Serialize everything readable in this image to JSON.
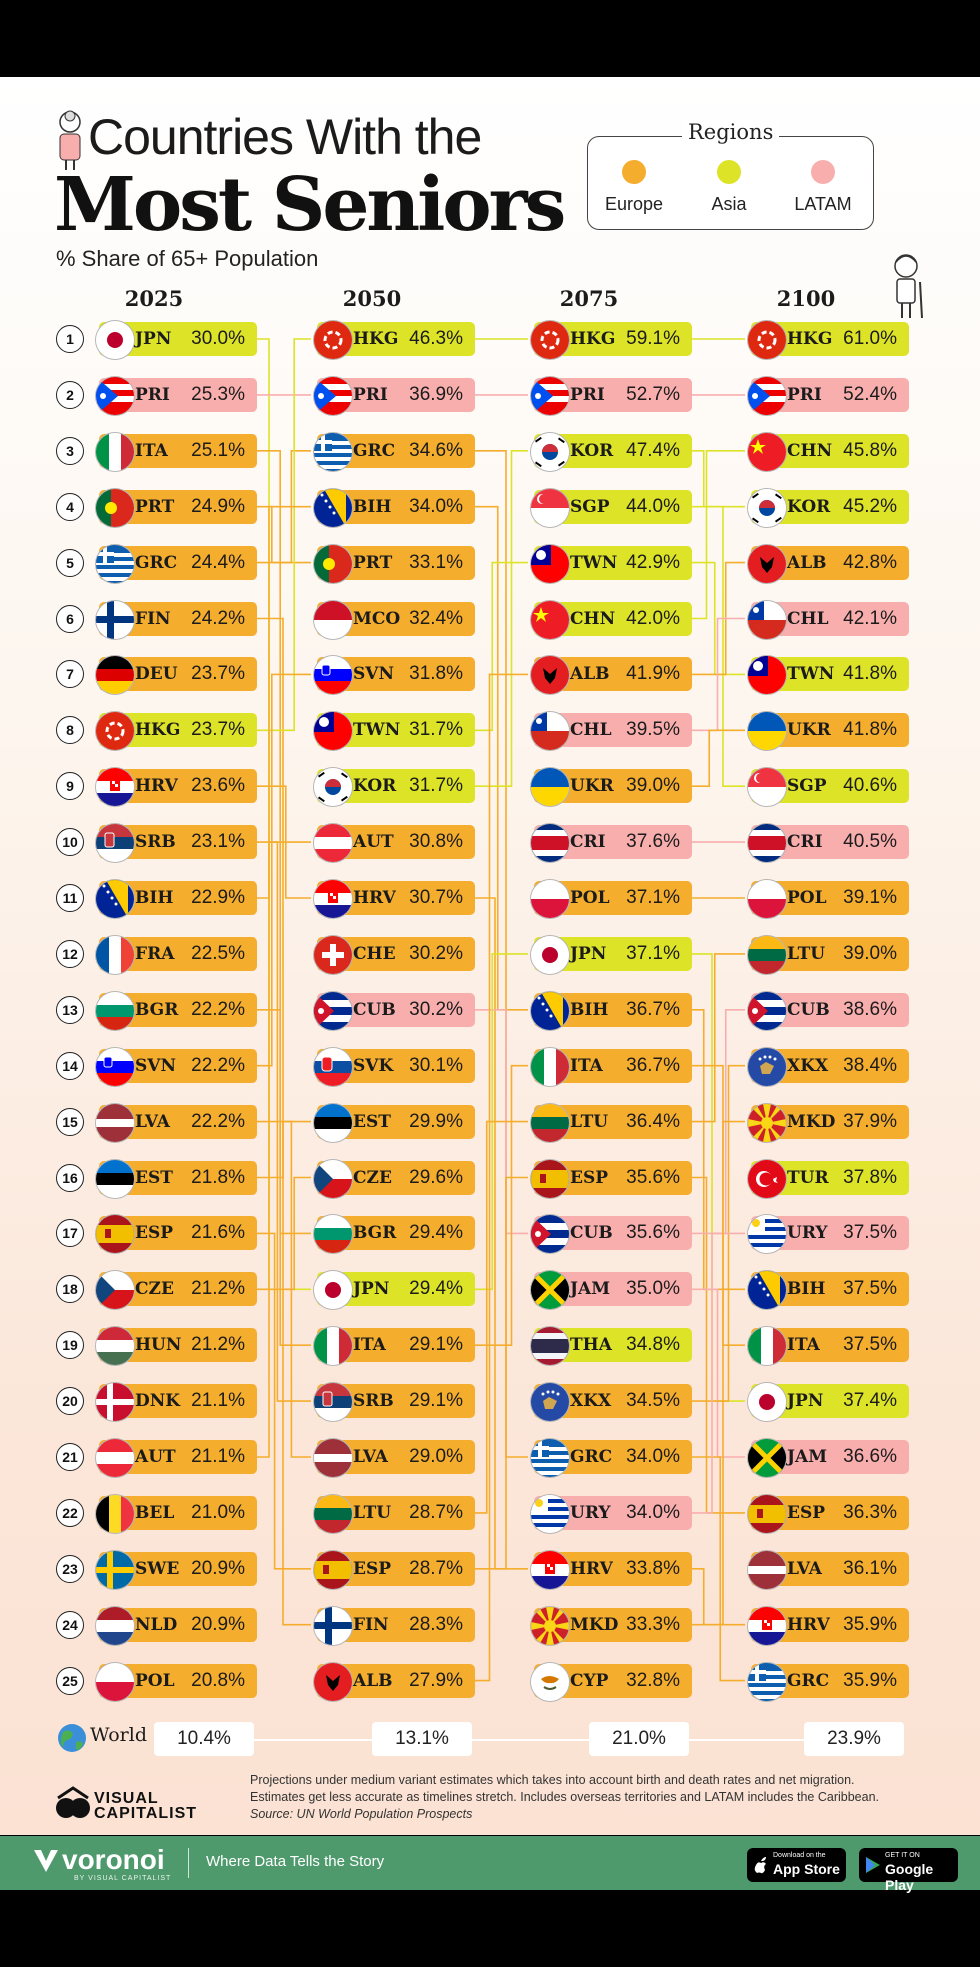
{
  "title": {
    "line1": "Countries With the",
    "line2": "Most Seniors"
  },
  "subtitle": "% Share of 65+ Population",
  "legend": {
    "title": "Regions",
    "items": [
      {
        "label": "Europe",
        "color": "#F5AD2D"
      },
      {
        "label": "Asia",
        "color": "#DDE327"
      },
      {
        "label": "LATAM",
        "color": "#F9AEAE"
      }
    ]
  },
  "chart_data": {
    "type": "table",
    "years": [
      "2025",
      "2050",
      "2075",
      "2100"
    ],
    "ranks": [
      "1",
      "2",
      "3",
      "4",
      "5",
      "6",
      "7",
      "8",
      "9",
      "10",
      "11",
      "12",
      "13",
      "14",
      "15",
      "16",
      "17",
      "18",
      "19",
      "20",
      "21",
      "22",
      "23",
      "24",
      "25"
    ],
    "columns": [
      [
        {
          "code": "JPN",
          "value": "30.0%",
          "region": "Asia"
        },
        {
          "code": "PRI",
          "value": "25.3%",
          "region": "LATAM"
        },
        {
          "code": "ITA",
          "value": "25.1%",
          "region": "Europe"
        },
        {
          "code": "PRT",
          "value": "24.9%",
          "region": "Europe"
        },
        {
          "code": "GRC",
          "value": "24.4%",
          "region": "Europe"
        },
        {
          "code": "FIN",
          "value": "24.2%",
          "region": "Europe"
        },
        {
          "code": "DEU",
          "value": "23.7%",
          "region": "Europe"
        },
        {
          "code": "HKG",
          "value": "23.7%",
          "region": "Asia"
        },
        {
          "code": "HRV",
          "value": "23.6%",
          "region": "Europe"
        },
        {
          "code": "SRB",
          "value": "23.1%",
          "region": "Europe"
        },
        {
          "code": "BIH",
          "value": "22.9%",
          "region": "Europe"
        },
        {
          "code": "FRA",
          "value": "22.5%",
          "region": "Europe"
        },
        {
          "code": "BGR",
          "value": "22.2%",
          "region": "Europe"
        },
        {
          "code": "SVN",
          "value": "22.2%",
          "region": "Europe"
        },
        {
          "code": "LVA",
          "value": "22.2%",
          "region": "Europe"
        },
        {
          "code": "EST",
          "value": "21.8%",
          "region": "Europe"
        },
        {
          "code": "ESP",
          "value": "21.6%",
          "region": "Europe"
        },
        {
          "code": "CZE",
          "value": "21.2%",
          "region": "Europe"
        },
        {
          "code": "HUN",
          "value": "21.2%",
          "region": "Europe"
        },
        {
          "code": "DNK",
          "value": "21.1%",
          "region": "Europe"
        },
        {
          "code": "AUT",
          "value": "21.1%",
          "region": "Europe"
        },
        {
          "code": "BEL",
          "value": "21.0%",
          "region": "Europe"
        },
        {
          "code": "SWE",
          "value": "20.9%",
          "region": "Europe"
        },
        {
          "code": "NLD",
          "value": "20.9%",
          "region": "Europe"
        },
        {
          "code": "POL",
          "value": "20.8%",
          "region": "Europe"
        }
      ],
      [
        {
          "code": "HKG",
          "value": "46.3%",
          "region": "Asia"
        },
        {
          "code": "PRI",
          "value": "36.9%",
          "region": "LATAM"
        },
        {
          "code": "GRC",
          "value": "34.6%",
          "region": "Europe"
        },
        {
          "code": "BIH",
          "value": "34.0%",
          "region": "Europe"
        },
        {
          "code": "PRT",
          "value": "33.1%",
          "region": "Europe"
        },
        {
          "code": "MCO",
          "value": "32.4%",
          "region": "Europe"
        },
        {
          "code": "SVN",
          "value": "31.8%",
          "region": "Europe"
        },
        {
          "code": "TWN",
          "value": "31.7%",
          "region": "Asia"
        },
        {
          "code": "KOR",
          "value": "31.7%",
          "region": "Asia"
        },
        {
          "code": "AUT",
          "value": "30.8%",
          "region": "Europe"
        },
        {
          "code": "HRV",
          "value": "30.7%",
          "region": "Europe"
        },
        {
          "code": "CHE",
          "value": "30.2%",
          "region": "Europe"
        },
        {
          "code": "CUB",
          "value": "30.2%",
          "region": "LATAM"
        },
        {
          "code": "SVK",
          "value": "30.1%",
          "region": "Europe"
        },
        {
          "code": "EST",
          "value": "29.9%",
          "region": "Europe"
        },
        {
          "code": "CZE",
          "value": "29.6%",
          "region": "Europe"
        },
        {
          "code": "BGR",
          "value": "29.4%",
          "region": "Europe"
        },
        {
          "code": "JPN",
          "value": "29.4%",
          "region": "Asia"
        },
        {
          "code": "ITA",
          "value": "29.1%",
          "region": "Europe"
        },
        {
          "code": "SRB",
          "value": "29.1%",
          "region": "Europe"
        },
        {
          "code": "LVA",
          "value": "29.0%",
          "region": "Europe"
        },
        {
          "code": "LTU",
          "value": "28.7%",
          "region": "Europe"
        },
        {
          "code": "ESP",
          "value": "28.7%",
          "region": "Europe"
        },
        {
          "code": "FIN",
          "value": "28.3%",
          "region": "Europe"
        },
        {
          "code": "ALB",
          "value": "27.9%",
          "region": "Europe"
        }
      ],
      [
        {
          "code": "HKG",
          "value": "59.1%",
          "region": "Asia"
        },
        {
          "code": "PRI",
          "value": "52.7%",
          "region": "LATAM"
        },
        {
          "code": "KOR",
          "value": "47.4%",
          "region": "Asia"
        },
        {
          "code": "SGP",
          "value": "44.0%",
          "region": "Asia"
        },
        {
          "code": "TWN",
          "value": "42.9%",
          "region": "Asia"
        },
        {
          "code": "CHN",
          "value": "42.0%",
          "region": "Asia"
        },
        {
          "code": "ALB",
          "value": "41.9%",
          "region": "Europe"
        },
        {
          "code": "CHL",
          "value": "39.5%",
          "region": "LATAM"
        },
        {
          "code": "UKR",
          "value": "39.0%",
          "region": "Europe"
        },
        {
          "code": "CRI",
          "value": "37.6%",
          "region": "LATAM"
        },
        {
          "code": "POL",
          "value": "37.1%",
          "region": "Europe"
        },
        {
          "code": "JPN",
          "value": "37.1%",
          "region": "Asia"
        },
        {
          "code": "BIH",
          "value": "36.7%",
          "region": "Europe"
        },
        {
          "code": "ITA",
          "value": "36.7%",
          "region": "Europe"
        },
        {
          "code": "LTU",
          "value": "36.4%",
          "region": "Europe"
        },
        {
          "code": "ESP",
          "value": "35.6%",
          "region": "Europe"
        },
        {
          "code": "CUB",
          "value": "35.6%",
          "region": "LATAM"
        },
        {
          "code": "JAM",
          "value": "35.0%",
          "region": "LATAM"
        },
        {
          "code": "THA",
          "value": "34.8%",
          "region": "Asia"
        },
        {
          "code": "XKX",
          "value": "34.5%",
          "region": "Europe"
        },
        {
          "code": "GRC",
          "value": "34.0%",
          "region": "Europe"
        },
        {
          "code": "URY",
          "value": "34.0%",
          "region": "LATAM"
        },
        {
          "code": "HRV",
          "value": "33.8%",
          "region": "Europe"
        },
        {
          "code": "MKD",
          "value": "33.3%",
          "region": "Europe"
        },
        {
          "code": "CYP",
          "value": "32.8%",
          "region": "Europe"
        }
      ],
      [
        {
          "code": "HKG",
          "value": "61.0%",
          "region": "Asia"
        },
        {
          "code": "PRI",
          "value": "52.4%",
          "region": "LATAM"
        },
        {
          "code": "CHN",
          "value": "45.8%",
          "region": "Asia"
        },
        {
          "code": "KOR",
          "value": "45.2%",
          "region": "Asia"
        },
        {
          "code": "ALB",
          "value": "42.8%",
          "region": "Europe"
        },
        {
          "code": "CHL",
          "value": "42.1%",
          "region": "LATAM"
        },
        {
          "code": "TWN",
          "value": "41.8%",
          "region": "Asia"
        },
        {
          "code": "UKR",
          "value": "41.8%",
          "region": "Europe"
        },
        {
          "code": "SGP",
          "value": "40.6%",
          "region": "Asia"
        },
        {
          "code": "CRI",
          "value": "40.5%",
          "region": "LATAM"
        },
        {
          "code": "POL",
          "value": "39.1%",
          "region": "Europe"
        },
        {
          "code": "LTU",
          "value": "39.0%",
          "region": "Europe"
        },
        {
          "code": "CUB",
          "value": "38.6%",
          "region": "LATAM"
        },
        {
          "code": "XKX",
          "value": "38.4%",
          "region": "Europe"
        },
        {
          "code": "MKD",
          "value": "37.9%",
          "region": "Europe"
        },
        {
          "code": "TUR",
          "value": "37.8%",
          "region": "Asia"
        },
        {
          "code": "URY",
          "value": "37.5%",
          "region": "LATAM"
        },
        {
          "code": "BIH",
          "value": "37.5%",
          "region": "Europe"
        },
        {
          "code": "ITA",
          "value": "37.5%",
          "region": "Europe"
        },
        {
          "code": "JPN",
          "value": "37.4%",
          "region": "Asia"
        },
        {
          "code": "JAM",
          "value": "36.6%",
          "region": "LATAM"
        },
        {
          "code": "ESP",
          "value": "36.3%",
          "region": "Europe"
        },
        {
          "code": "LVA",
          "value": "36.1%",
          "region": "Europe"
        },
        {
          "code": "HRV",
          "value": "35.9%",
          "region": "Europe"
        },
        {
          "code": "GRC",
          "value": "35.9%",
          "region": "Europe"
        }
      ]
    ],
    "world": {
      "label": "World",
      "values": [
        "10.4%",
        "13.1%",
        "21.0%",
        "23.9%"
      ]
    }
  },
  "notes": {
    "line1": "Projections under medium variant estimates which takes into account birth and death rates and net migration.",
    "line2": "Estimates get less accurate as timelines stretch. Includes overseas territories and LATAM includes the Caribbean.",
    "source": "Source: UN World Population Prospects"
  },
  "brand": {
    "line1": "VISUAL",
    "line2": "CAPITALIST"
  },
  "footer": {
    "brand": "voronoi",
    "brand_sub": "BY VISUAL CAPITALIST",
    "tagline": "Where Data Tells the Story",
    "appstore_small": "Download on the",
    "appstore": "App Store",
    "googleplay_small": "GET IT ON",
    "googleplay": "Google Play"
  }
}
